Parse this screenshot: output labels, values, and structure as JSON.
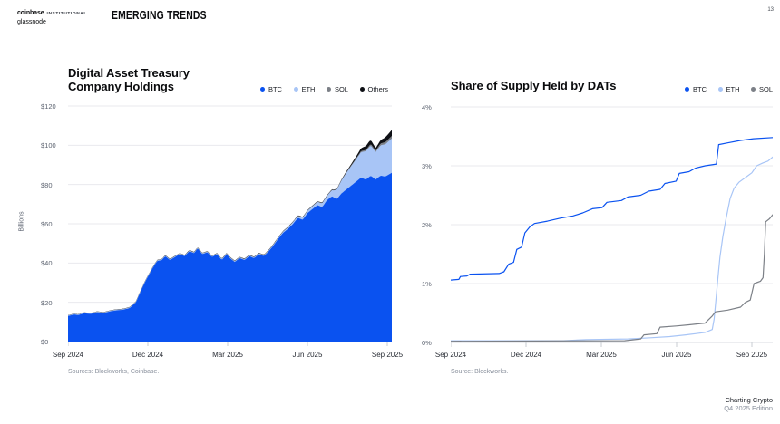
{
  "page_number": "13",
  "header": {
    "brand_bold": "coinbase",
    "brand_small": "INSTITUTIONAL",
    "brand_line2": "glassnode",
    "section_title": "EMERGING TRENDS"
  },
  "footer": {
    "line1": "Charting Crypto",
    "line2": "Q4 2025 Edition"
  },
  "colors": {
    "btc": "#0a52f0",
    "eth": "#a8c5f6",
    "sol": "#7c8087",
    "others": "#0e1015",
    "grid": "#e9eaee",
    "axis": "#d8dbe0",
    "tick": "#c9cdd3"
  },
  "chart_data": [
    {
      "type": "area",
      "stacked": true,
      "title_line1": "Digital Asset Treasury",
      "title_line2": "Company Holdings",
      "ylabel": "Billions",
      "unit": "$B",
      "ylim": [
        0,
        120
      ],
      "grid": true,
      "legend_position": "top-right",
      "sources": "Sources: Blockworks, Coinbase.",
      "yticks": [
        {
          "v": 0,
          "label": "$0"
        },
        {
          "v": 20,
          "label": "$20"
        },
        {
          "v": 40,
          "label": "$40"
        },
        {
          "v": 60,
          "label": "$60"
        },
        {
          "v": 80,
          "label": "$80"
        },
        {
          "v": 100,
          "label": "$100"
        },
        {
          "v": 120,
          "label": "$120"
        }
      ],
      "xticks": [
        {
          "pos": 0.0,
          "label": "Sep 2024"
        },
        {
          "pos": 0.2465,
          "label": "Dec 2024"
        },
        {
          "pos": 0.493,
          "label": "Mar 2025"
        },
        {
          "pos": 0.7395,
          "label": "Jun 2025"
        },
        {
          "pos": 0.986,
          "label": "Sep 2025"
        }
      ],
      "series": [
        {
          "name": "BTC",
          "color": "btc",
          "points": [
            [
              0,
              13
            ],
            [
              0.02,
              13.8
            ],
            [
              0.03,
              13.4
            ],
            [
              0.05,
              14.4
            ],
            [
              0.07,
              14.1
            ],
            [
              0.09,
              14.9
            ],
            [
              0.11,
              14.5
            ],
            [
              0.13,
              15.4
            ],
            [
              0.15,
              15.9
            ],
            [
              0.17,
              16.2
            ],
            [
              0.19,
              17
            ],
            [
              0.21,
              20
            ],
            [
              0.22,
              24
            ],
            [
              0.24,
              31
            ],
            [
              0.26,
              37
            ],
            [
              0.275,
              41
            ],
            [
              0.29,
              41.5
            ],
            [
              0.3,
              43.5
            ],
            [
              0.315,
              41.5
            ],
            [
              0.33,
              43
            ],
            [
              0.345,
              44.5
            ],
            [
              0.36,
              43.5
            ],
            [
              0.375,
              46
            ],
            [
              0.39,
              45
            ],
            [
              0.4,
              47.5
            ],
            [
              0.415,
              44.5
            ],
            [
              0.43,
              45.5
            ],
            [
              0.445,
              43
            ],
            [
              0.46,
              44.5
            ],
            [
              0.475,
              41.5
            ],
            [
              0.49,
              44.5
            ],
            [
              0.5,
              42.5
            ],
            [
              0.515,
              40.5
            ],
            [
              0.53,
              42.5
            ],
            [
              0.545,
              41.5
            ],
            [
              0.56,
              43.5
            ],
            [
              0.575,
              42.5
            ],
            [
              0.59,
              44.5
            ],
            [
              0.605,
              43.5
            ],
            [
              0.62,
              46
            ],
            [
              0.635,
              49
            ],
            [
              0.65,
              52.5
            ],
            [
              0.665,
              55.5
            ],
            [
              0.68,
              57.5
            ],
            [
              0.695,
              60
            ],
            [
              0.71,
              63
            ],
            [
              0.725,
              62
            ],
            [
              0.74,
              65.5
            ],
            [
              0.755,
              67.5
            ],
            [
              0.77,
              69.5
            ],
            [
              0.785,
              68.5
            ],
            [
              0.8,
              72
            ],
            [
              0.815,
              74
            ],
            [
              0.83,
              72.5
            ],
            [
              0.845,
              75.5
            ],
            [
              0.86,
              77.5
            ],
            [
              0.875,
              79.5
            ],
            [
              0.89,
              81.5
            ],
            [
              0.905,
              83.5
            ],
            [
              0.92,
              82.5
            ],
            [
              0.935,
              84.5
            ],
            [
              0.95,
              82.5
            ],
            [
              0.965,
              84.5
            ],
            [
              0.98,
              84
            ],
            [
              1,
              86
            ]
          ]
        },
        {
          "name": "ETH",
          "color": "eth",
          "points": [
            [
              0,
              0.3
            ],
            [
              0.6,
              0.4
            ],
            [
              0.66,
              0.6
            ],
            [
              0.7,
              0.9
            ],
            [
              0.74,
              1.2
            ],
            [
              0.78,
              1.8
            ],
            [
              0.8,
              2.2
            ],
            [
              0.82,
              3.5
            ],
            [
              0.84,
              6
            ],
            [
              0.86,
              8.5
            ],
            [
              0.875,
              10
            ],
            [
              0.89,
              11.5
            ],
            [
              0.905,
              13
            ],
            [
              0.92,
              14.5
            ],
            [
              0.935,
              15.5
            ],
            [
              0.95,
              14
            ],
            [
              0.965,
              15.5
            ],
            [
              0.98,
              16.5
            ],
            [
              1,
              17.5
            ]
          ]
        },
        {
          "name": "SOL",
          "color": "sol",
          "points": [
            [
              0,
              0.1
            ],
            [
              0.8,
              0.2
            ],
            [
              0.85,
              0.35
            ],
            [
              0.9,
              0.55
            ],
            [
              0.95,
              0.85
            ],
            [
              1,
              1.3
            ]
          ]
        },
        {
          "name": "Others",
          "color": "others",
          "points": [
            [
              0,
              0.05
            ],
            [
              0.84,
              0.2
            ],
            [
              0.87,
              0.5
            ],
            [
              0.89,
              0.9
            ],
            [
              0.91,
              1.6
            ],
            [
              0.93,
              2.2
            ],
            [
              0.95,
              1.2
            ],
            [
              0.965,
              1.6
            ],
            [
              0.98,
              2.4
            ],
            [
              1,
              3
            ]
          ]
        }
      ]
    },
    {
      "type": "line",
      "stacked": false,
      "title": "Share of Supply Held by DATs",
      "unit": "%",
      "ylim": [
        0,
        4
      ],
      "grid": true,
      "legend_position": "top-right",
      "source": "Source: Blockworks.",
      "yticks": [
        {
          "v": 0,
          "label": "0%"
        },
        {
          "v": 1,
          "label": "1%"
        },
        {
          "v": 2,
          "label": "2%"
        },
        {
          "v": 3,
          "label": "3%"
        },
        {
          "v": 4,
          "label": "4%"
        }
      ],
      "xticks": [
        {
          "pos": 0.0,
          "label": "Sep 2024"
        },
        {
          "pos": 0.2338,
          "label": "Dec 2024"
        },
        {
          "pos": 0.4676,
          "label": "Mar 2025"
        },
        {
          "pos": 0.7014,
          "label": "Jun 2025"
        },
        {
          "pos": 0.9352,
          "label": "Sep 2025"
        }
      ],
      "series": [
        {
          "name": "BTC",
          "color": "btc",
          "points": [
            [
              0,
              1.06
            ],
            [
              0.025,
              1.07
            ],
            [
              0.03,
              1.12
            ],
            [
              0.05,
              1.13
            ],
            [
              0.06,
              1.16
            ],
            [
              0.15,
              1.17
            ],
            [
              0.165,
              1.2
            ],
            [
              0.18,
              1.33
            ],
            [
              0.195,
              1.36
            ],
            [
              0.205,
              1.58
            ],
            [
              0.22,
              1.62
            ],
            [
              0.23,
              1.86
            ],
            [
              0.245,
              1.96
            ],
            [
              0.26,
              2.02
            ],
            [
              0.3,
              2.06
            ],
            [
              0.34,
              2.11
            ],
            [
              0.38,
              2.15
            ],
            [
              0.41,
              2.2
            ],
            [
              0.44,
              2.27
            ],
            [
              0.47,
              2.29
            ],
            [
              0.485,
              2.38
            ],
            [
              0.53,
              2.41
            ],
            [
              0.55,
              2.47
            ],
            [
              0.59,
              2.5
            ],
            [
              0.615,
              2.57
            ],
            [
              0.65,
              2.6
            ],
            [
              0.665,
              2.7
            ],
            [
              0.7,
              2.74
            ],
            [
              0.71,
              2.87
            ],
            [
              0.74,
              2.9
            ],
            [
              0.76,
              2.96
            ],
            [
              0.79,
              3.0
            ],
            [
              0.825,
              3.03
            ],
            [
              0.832,
              3.36
            ],
            [
              0.86,
              3.39
            ],
            [
              0.9,
              3.43
            ],
            [
              0.94,
              3.46
            ],
            [
              1,
              3.48
            ]
          ]
        },
        {
          "name": "ETH",
          "color": "eth",
          "points": [
            [
              0,
              0.03
            ],
            [
              0.35,
              0.03
            ],
            [
              0.42,
              0.05
            ],
            [
              0.55,
              0.06
            ],
            [
              0.62,
              0.08
            ],
            [
              0.68,
              0.1
            ],
            [
              0.73,
              0.13
            ],
            [
              0.76,
              0.15
            ],
            [
              0.79,
              0.17
            ],
            [
              0.812,
              0.22
            ],
            [
              0.818,
              0.4
            ],
            [
              0.824,
              0.75
            ],
            [
              0.83,
              1.1
            ],
            [
              0.836,
              1.45
            ],
            [
              0.845,
              1.8
            ],
            [
              0.855,
              2.1
            ],
            [
              0.868,
              2.45
            ],
            [
              0.88,
              2.62
            ],
            [
              0.895,
              2.72
            ],
            [
              0.915,
              2.8
            ],
            [
              0.935,
              2.88
            ],
            [
              0.95,
              3.0
            ],
            [
              0.97,
              3.05
            ],
            [
              0.985,
              3.08
            ],
            [
              1,
              3.15
            ]
          ]
        },
        {
          "name": "SOL",
          "color": "sol",
          "points": [
            [
              0,
              0.02
            ],
            [
              0.54,
              0.03
            ],
            [
              0.59,
              0.06
            ],
            [
              0.6,
              0.13
            ],
            [
              0.64,
              0.15
            ],
            [
              0.65,
              0.26
            ],
            [
              0.7,
              0.28
            ],
            [
              0.74,
              0.3
            ],
            [
              0.79,
              0.33
            ],
            [
              0.812,
              0.45
            ],
            [
              0.822,
              0.52
            ],
            [
              0.86,
              0.55
            ],
            [
              0.9,
              0.6
            ],
            [
              0.915,
              0.68
            ],
            [
              0.93,
              0.72
            ],
            [
              0.942,
              1.0
            ],
            [
              0.962,
              1.04
            ],
            [
              0.97,
              1.1
            ],
            [
              0.974,
              1.5
            ],
            [
              0.978,
              2.05
            ],
            [
              0.99,
              2.1
            ],
            [
              1,
              2.17
            ]
          ]
        }
      ]
    }
  ]
}
